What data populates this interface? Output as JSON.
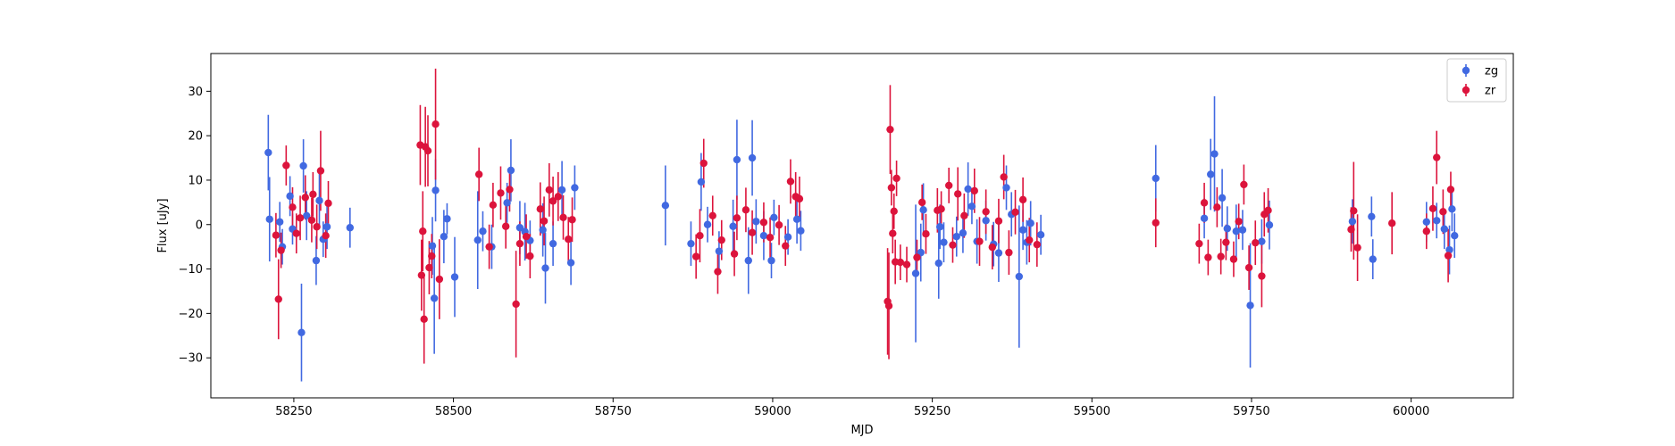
{
  "chart_data": {
    "type": "scatter",
    "title": "",
    "xlabel": "MJD",
    "ylabel": "Flux [uJy]",
    "xlim": [
      58120,
      60160
    ],
    "ylim": [
      -39,
      38.5
    ],
    "xticks": [
      58250,
      58500,
      58750,
      59000,
      59250,
      59500,
      59750,
      60000
    ],
    "yticks": [
      -30,
      -20,
      -10,
      0,
      10,
      20,
      30
    ],
    "grid": false,
    "legend": "top-right",
    "series": [
      {
        "name": "zg",
        "color": "#4169e1",
        "points": [
          [
            58210,
            16.2,
            8.5
          ],
          [
            58212,
            1.2,
            9.5
          ],
          [
            58228,
            0.6,
            4.5
          ],
          [
            58232,
            -5.0,
            4.0
          ],
          [
            58244,
            6.4,
            4.5
          ],
          [
            58248,
            -1.0,
            3.5
          ],
          [
            58262,
            -24.3,
            11.0
          ],
          [
            58265,
            13.2,
            6.0
          ],
          [
            58270,
            2.0,
            5.5
          ],
          [
            58285,
            -8.1,
            5.5
          ],
          [
            58290,
            5.4,
            6.0
          ],
          [
            58296,
            -3.3,
            4.0
          ],
          [
            58302,
            -0.5,
            5.0
          ],
          [
            58338,
            -0.7,
            4.5
          ],
          [
            58467,
            -4.8,
            6.5
          ],
          [
            58470,
            -16.6,
            12.5
          ],
          [
            58472,
            7.7,
            7.0
          ],
          [
            58485,
            -2.7,
            6.0
          ],
          [
            58490,
            1.3,
            3.5
          ],
          [
            58502,
            -11.8,
            9.0
          ],
          [
            58538,
            -3.5,
            11.0
          ],
          [
            58546,
            -1.5,
            4.5
          ],
          [
            58560,
            -5.0,
            5.0
          ],
          [
            58584,
            4.9,
            4.5
          ],
          [
            58590,
            12.2,
            7.0
          ],
          [
            58604,
            -0.7,
            6.0
          ],
          [
            58612,
            -1.6,
            6.5
          ],
          [
            58620,
            -3.6,
            4.5
          ],
          [
            58640,
            -1.2,
            6.0
          ],
          [
            58644,
            -9.8,
            8.0
          ],
          [
            58656,
            -4.3,
            5.0
          ],
          [
            58670,
            7.8,
            6.5
          ],
          [
            58684,
            -8.6,
            5.0
          ],
          [
            58690,
            8.3,
            5.0
          ],
          [
            58832,
            4.3,
            9.0
          ],
          [
            58872,
            -4.3,
            5.0
          ],
          [
            58888,
            9.6,
            6.5
          ],
          [
            58898,
            0.0,
            4.0
          ],
          [
            58916,
            -6.0,
            4.5
          ],
          [
            58938,
            -0.4,
            6.0
          ],
          [
            58944,
            14.6,
            9.0
          ],
          [
            58962,
            -8.1,
            7.5
          ],
          [
            58968,
            15.0,
            8.5
          ],
          [
            58974,
            0.7,
            5.0
          ],
          [
            58986,
            -2.5,
            5.5
          ],
          [
            58998,
            -8.1,
            4.0
          ],
          [
            59002,
            1.6,
            4.0
          ],
          [
            59024,
            -2.8,
            4.0
          ],
          [
            59038,
            1.2,
            5.5
          ],
          [
            59044,
            -1.4,
            4.5
          ],
          [
            59224,
            -11.0,
            15.5
          ],
          [
            59232,
            -6.3,
            6.5
          ],
          [
            59236,
            3.3,
            6.0
          ],
          [
            59260,
            -8.7,
            8.0
          ],
          [
            59262,
            -0.5,
            5.0
          ],
          [
            59268,
            -4.0,
            4.5
          ],
          [
            59288,
            -2.7,
            4.5
          ],
          [
            59298,
            -1.9,
            4.5
          ],
          [
            59306,
            8.0,
            6.0
          ],
          [
            59312,
            4.1,
            4.0
          ],
          [
            59320,
            -3.8,
            5.0
          ],
          [
            59334,
            0.9,
            4.5
          ],
          [
            59346,
            -4.4,
            5.0
          ],
          [
            59354,
            -6.4,
            6.5
          ],
          [
            59366,
            8.3,
            5.0
          ],
          [
            59374,
            2.3,
            5.0
          ],
          [
            59386,
            -11.7,
            16.0
          ],
          [
            59392,
            -1.2,
            4.5
          ],
          [
            59398,
            -4.0,
            5.0
          ],
          [
            59404,
            0.3,
            5.0
          ],
          [
            59420,
            -2.3,
            4.5
          ],
          [
            59600,
            10.4,
            7.5
          ],
          [
            59676,
            1.4,
            4.5
          ],
          [
            59686,
            11.3,
            8.0
          ],
          [
            59692,
            15.9,
            13.0
          ],
          [
            59704,
            6.0,
            6.5
          ],
          [
            59712,
            -0.9,
            5.0
          ],
          [
            59726,
            -1.5,
            6.0
          ],
          [
            59736,
            -1.2,
            4.5
          ],
          [
            59748,
            -18.2,
            14.0
          ],
          [
            59766,
            -3.8,
            5.0
          ],
          [
            59778,
            -0.1,
            5.5
          ],
          [
            59908,
            0.7,
            5.0
          ],
          [
            59938,
            1.8,
            4.5
          ],
          [
            59940,
            -7.8,
            4.5
          ],
          [
            60024,
            0.6,
            4.5
          ],
          [
            60040,
            0.9,
            4.0
          ],
          [
            60052,
            -1.0,
            4.5
          ],
          [
            60060,
            -5.7,
            5.5
          ],
          [
            60064,
            3.5,
            5.0
          ],
          [
            60068,
            -2.5,
            5.0
          ]
        ]
      },
      {
        "name": "zr",
        "color": "#dc143c",
        "points": [
          [
            58222,
            -2.4,
            5.0
          ],
          [
            58226,
            -16.8,
            9.0
          ],
          [
            58230,
            -5.8,
            4.0
          ],
          [
            58238,
            13.3,
            4.5
          ],
          [
            58248,
            3.9,
            4.5
          ],
          [
            58254,
            -2.0,
            4.5
          ],
          [
            58260,
            1.5,
            5.0
          ],
          [
            58268,
            6.1,
            5.0
          ],
          [
            58278,
            1.0,
            5.0
          ],
          [
            58280,
            6.8,
            5.0
          ],
          [
            58286,
            -0.5,
            5.0
          ],
          [
            58292,
            12.1,
            9.0
          ],
          [
            58300,
            -2.5,
            5.0
          ],
          [
            58304,
            4.8,
            5.0
          ],
          [
            58448,
            17.9,
            9.0
          ],
          [
            58450,
            -11.4,
            8.0
          ],
          [
            58452,
            -1.5,
            9.0
          ],
          [
            58454,
            -21.3,
            10.0
          ],
          [
            58456,
            17.5,
            9.0
          ],
          [
            58460,
            16.6,
            8.0
          ],
          [
            58462,
            -9.7,
            6.0
          ],
          [
            58466,
            -7.1,
            5.0
          ],
          [
            58472,
            22.6,
            12.5
          ],
          [
            58478,
            -12.3,
            9.0
          ],
          [
            58540,
            11.3,
            6.0
          ],
          [
            58556,
            -5.0,
            5.0
          ],
          [
            58562,
            4.4,
            5.0
          ],
          [
            58574,
            7.1,
            6.0
          ],
          [
            58582,
            -0.4,
            5.0
          ],
          [
            58588,
            7.9,
            5.0
          ],
          [
            58598,
            -17.9,
            12.0
          ],
          [
            58604,
            -4.3,
            5.0
          ],
          [
            58614,
            -2.7,
            5.0
          ],
          [
            58620,
            -7.1,
            5.0
          ],
          [
            58636,
            3.5,
            6.0
          ],
          [
            58642,
            0.8,
            5.5
          ],
          [
            58650,
            7.8,
            6.0
          ],
          [
            58656,
            5.3,
            5.5
          ],
          [
            58664,
            6.3,
            5.5
          ],
          [
            58672,
            1.6,
            5.0
          ],
          [
            58680,
            -3.3,
            5.0
          ],
          [
            58686,
            1.1,
            5.0
          ],
          [
            58880,
            -7.2,
            5.0
          ],
          [
            58886,
            -2.5,
            6.0
          ],
          [
            58892,
            13.8,
            5.5
          ],
          [
            58906,
            2.0,
            4.5
          ],
          [
            58914,
            -10.6,
            5.0
          ],
          [
            58920,
            -3.5,
            4.5
          ],
          [
            58940,
            -6.6,
            5.0
          ],
          [
            58944,
            1.5,
            5.0
          ],
          [
            58958,
            3.3,
            5.0
          ],
          [
            58968,
            -1.8,
            5.0
          ],
          [
            58986,
            0.5,
            4.5
          ],
          [
            58996,
            -2.9,
            4.5
          ],
          [
            59010,
            -0.1,
            4.5
          ],
          [
            59020,
            -4.8,
            4.5
          ],
          [
            59028,
            9.7,
            5.0
          ],
          [
            59036,
            6.3,
            5.5
          ],
          [
            59042,
            5.8,
            5.0
          ],
          [
            59180,
            -17.3,
            12.0
          ],
          [
            59182,
            -18.3,
            12.0
          ],
          [
            59184,
            21.4,
            10.0
          ],
          [
            59186,
            8.3,
            4.0
          ],
          [
            59188,
            -2.0,
            4.5
          ],
          [
            59190,
            3.0,
            4.0
          ],
          [
            59192,
            -8.4,
            5.0
          ],
          [
            59194,
            10.4,
            4.0
          ],
          [
            59200,
            -8.5,
            4.0
          ],
          [
            59210,
            -9.0,
            4.0
          ],
          [
            59226,
            -7.4,
            4.0
          ],
          [
            59234,
            5.0,
            4.0
          ],
          [
            59240,
            -2.1,
            4.5
          ],
          [
            59258,
            3.2,
            5.0
          ],
          [
            59264,
            3.5,
            4.0
          ],
          [
            59276,
            8.8,
            4.0
          ],
          [
            59282,
            -4.6,
            4.0
          ],
          [
            59290,
            6.9,
            6.0
          ],
          [
            59300,
            2.0,
            5.0
          ],
          [
            59316,
            7.6,
            5.0
          ],
          [
            59324,
            -3.8,
            5.5
          ],
          [
            59334,
            2.9,
            5.0
          ],
          [
            59344,
            -5.1,
            5.0
          ],
          [
            59354,
            0.8,
            5.0
          ],
          [
            59362,
            10.7,
            5.0
          ],
          [
            59370,
            -6.3,
            5.0
          ],
          [
            59380,
            2.8,
            5.0
          ],
          [
            59392,
            5.6,
            5.0
          ],
          [
            59402,
            -3.5,
            5.0
          ],
          [
            59414,
            -4.5,
            5.0
          ],
          [
            59600,
            0.4,
            5.5
          ],
          [
            59668,
            -4.3,
            4.5
          ],
          [
            59676,
            4.9,
            4.5
          ],
          [
            59682,
            -7.4,
            4.0
          ],
          [
            59696,
            3.9,
            4.5
          ],
          [
            59702,
            -7.2,
            4.0
          ],
          [
            59710,
            -4.0,
            4.0
          ],
          [
            59722,
            -7.8,
            4.0
          ],
          [
            59730,
            0.7,
            4.0
          ],
          [
            59738,
            9.0,
            4.5
          ],
          [
            59746,
            -9.7,
            5.0
          ],
          [
            59756,
            -4.1,
            5.0
          ],
          [
            59766,
            -11.6,
            7.0
          ],
          [
            59770,
            2.3,
            5.0
          ],
          [
            59776,
            3.2,
            5.0
          ],
          [
            59906,
            -1.1,
            5.0
          ],
          [
            59910,
            3.1,
            11.0
          ],
          [
            59916,
            -5.2,
            7.5
          ],
          [
            59970,
            0.3,
            7.0
          ],
          [
            60024,
            -1.5,
            4.0
          ],
          [
            60034,
            3.6,
            5.0
          ],
          [
            60040,
            15.1,
            6.0
          ],
          [
            60050,
            2.9,
            5.0
          ],
          [
            60058,
            -7.0,
            6.0
          ],
          [
            60062,
            7.9,
            4.0
          ]
        ]
      }
    ]
  }
}
